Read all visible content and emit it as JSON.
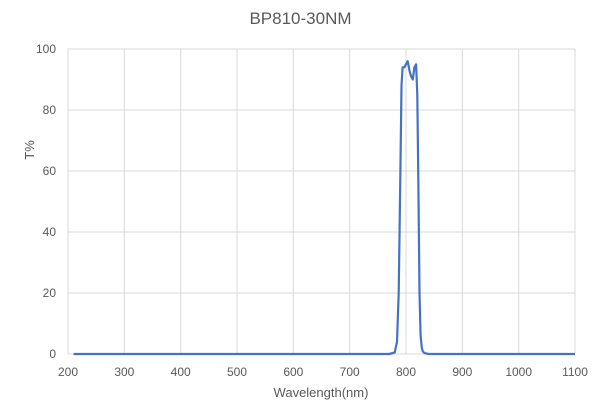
{
  "chart_data": {
    "type": "line",
    "title": "BP810-30NM",
    "xlabel": "Wavelength(nm)",
    "ylabel": "T%",
    "xlim": [
      200,
      1100
    ],
    "ylim": [
      0,
      100
    ],
    "x_ticks": [
      200,
      300,
      400,
      500,
      600,
      700,
      800,
      900,
      1000,
      1100
    ],
    "y_ticks": [
      0,
      20,
      40,
      60,
      80,
      100
    ],
    "grid": true,
    "legend": null,
    "series": [
      {
        "name": "BP810-30NM",
        "color": "#4472C4",
        "x": [
          210,
          300,
          400,
          500,
          600,
          700,
          770,
          780,
          784,
          787,
          790,
          792,
          794,
          797,
          800,
          803,
          806,
          809,
          812,
          815,
          818,
          820,
          822,
          824,
          826,
          828,
          830,
          833,
          840,
          900,
          1000,
          1100
        ],
        "y": [
          0,
          0,
          0,
          0,
          0,
          0,
          0,
          0.5,
          4,
          20,
          60,
          88,
          94,
          94,
          95,
          96,
          93,
          91,
          90,
          94,
          95,
          85,
          55,
          20,
          6,
          2,
          0.8,
          0.3,
          0,
          0,
          0,
          0
        ]
      }
    ]
  }
}
